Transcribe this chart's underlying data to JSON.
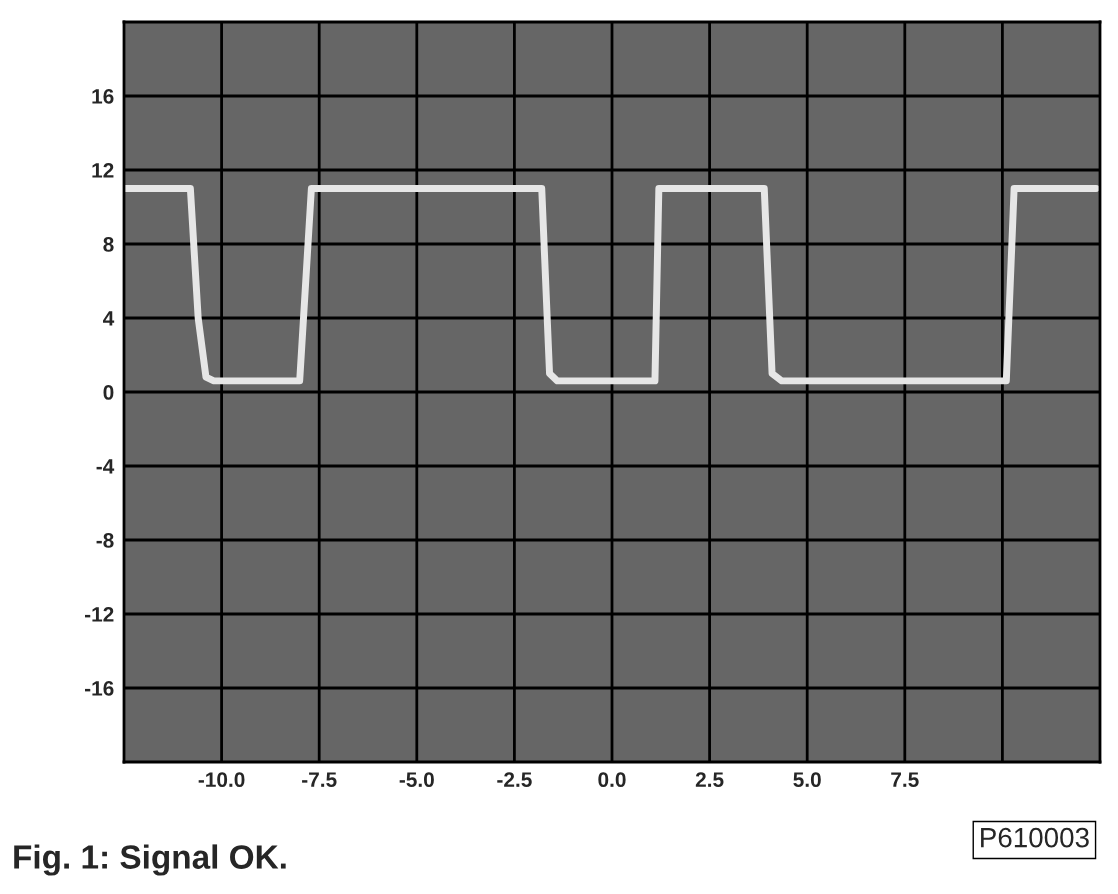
{
  "chart_data": {
    "type": "line",
    "x": [
      -12.5,
      -10.8,
      -10.6,
      -10.4,
      -10.2,
      -8.0,
      -7.7,
      -1.8,
      -1.6,
      -1.4,
      1.1,
      1.2,
      3.9,
      4.1,
      4.35,
      10.1,
      10.3,
      12.4
    ],
    "series": [
      {
        "color": "#e6e6e6",
        "values": [
          11,
          11,
          4,
          0.8,
          0.6,
          0.6,
          11,
          11,
          1.0,
          0.6,
          0.6,
          11,
          11,
          1.0,
          0.6,
          0.6,
          11,
          11
        ]
      }
    ],
    "xlim": [
      -12.5,
      12.5
    ],
    "xticks": [
      {
        "value": -10,
        "label": "-10.0"
      },
      {
        "value": -7.5,
        "label": "-7.5"
      },
      {
        "value": -5,
        "label": "-5.0"
      },
      {
        "value": -2.5,
        "label": "-2.5"
      },
      {
        "value": 0,
        "label": "0.0"
      },
      {
        "value": 2.5,
        "label": "2.5"
      },
      {
        "value": 5,
        "label": "5.0"
      },
      {
        "value": 7.5,
        "label": "7.5"
      },
      {
        "value": 10,
        "label": null
      }
    ],
    "ylim": [
      -20,
      20
    ],
    "yticks": [
      -16,
      -12,
      -8,
      -4,
      0,
      4,
      8,
      12,
      16
    ],
    "grid": true,
    "marker": "none",
    "line_style": "solid",
    "annotations": [
      "P610003",
      "Fig. 1: Signal OK."
    ]
  }
}
